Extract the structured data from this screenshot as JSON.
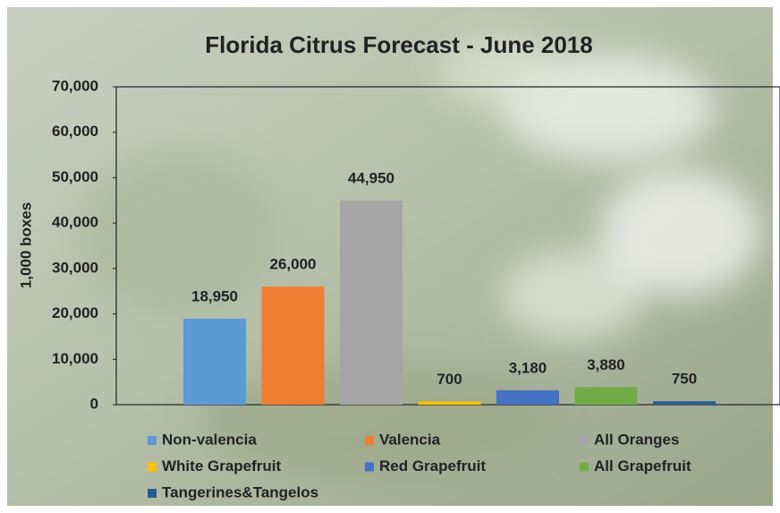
{
  "chart_data": {
    "type": "bar",
    "title": "Florida Citrus Forecast - June 2018",
    "y_label": "1,000 boxes",
    "ylim": [
      0,
      70000
    ],
    "yticks": [
      0,
      {
        "value": 10000,
        "label": "10,000"
      },
      {
        "value": 20000,
        "label": "20,000"
      },
      {
        "value": 30000,
        "label": "30,000"
      },
      {
        "value": 40000,
        "label": "40,000"
      },
      {
        "value": 50000,
        "label": "50,000"
      },
      {
        "value": 60000,
        "label": "60,000"
      },
      {
        "value": 70000,
        "label": "70,000"
      }
    ],
    "series": [
      {
        "name": "Non-valencia",
        "color": "#5b9bd5",
        "values": [
          18950
        ],
        "value_labels": [
          "18,950"
        ]
      },
      {
        "name": "Valencia",
        "color": "#ed7d31",
        "values": [
          26000
        ],
        "value_labels": [
          "26,000"
        ]
      },
      {
        "name": "All Oranges",
        "color": "#a5a5a5",
        "values": [
          44950
        ],
        "value_labels": [
          "44,950"
        ]
      },
      {
        "name": "White Grapefruit",
        "color": "#ffc000",
        "values": [
          700
        ]
      },
      {
        "name": "Red Grapefruit",
        "color": "#4472c4",
        "values": [
          3180
        ],
        "value_labels": [
          "3,180"
        ]
      },
      {
        "name": "All Grapefruit",
        "color": "#70ad47",
        "values": [
          3880
        ],
        "value_labels": [
          "3,880"
        ]
      },
      {
        "name": "Tangerines&Tangelos",
        "color": "#255e91",
        "values": [
          750
        ]
      }
    ]
  }
}
